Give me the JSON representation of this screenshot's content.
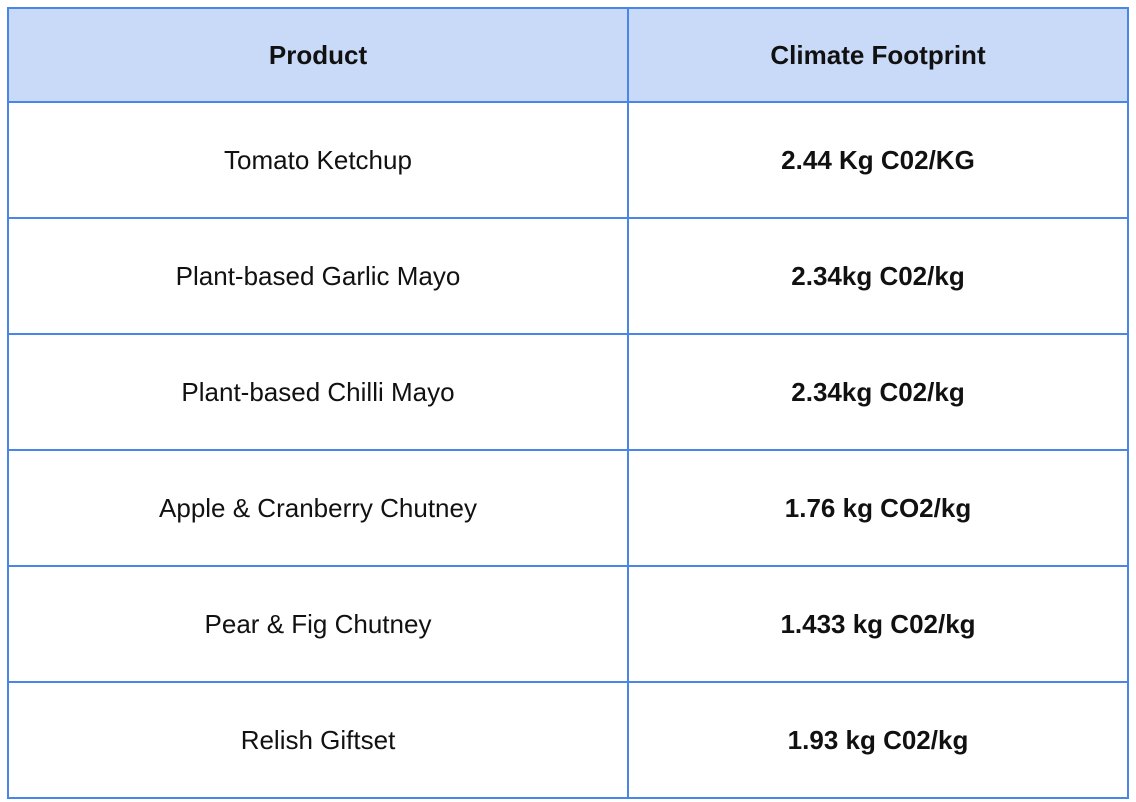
{
  "table": {
    "headers": [
      "Product",
      "Climate Footprint"
    ],
    "rows": [
      {
        "product": "Tomato Ketchup",
        "footprint": "2.44 Kg C02/KG"
      },
      {
        "product": "Plant-based Garlic Mayo",
        "footprint": "2.34kg C02/kg"
      },
      {
        "product": "Plant-based Chilli Mayo",
        "footprint": "2.34kg C02/kg"
      },
      {
        "product": "Apple & Cranberry Chutney",
        "footprint": "1.76 kg CO2/kg"
      },
      {
        "product": "Pear & Fig Chutney",
        "footprint": "1.433 kg C02/kg"
      },
      {
        "product": "Relish Giftset",
        "footprint": "1.93 kg C02/kg"
      }
    ]
  },
  "colors": {
    "border": "#4a86e8",
    "header_bg": "#c9daf8"
  }
}
